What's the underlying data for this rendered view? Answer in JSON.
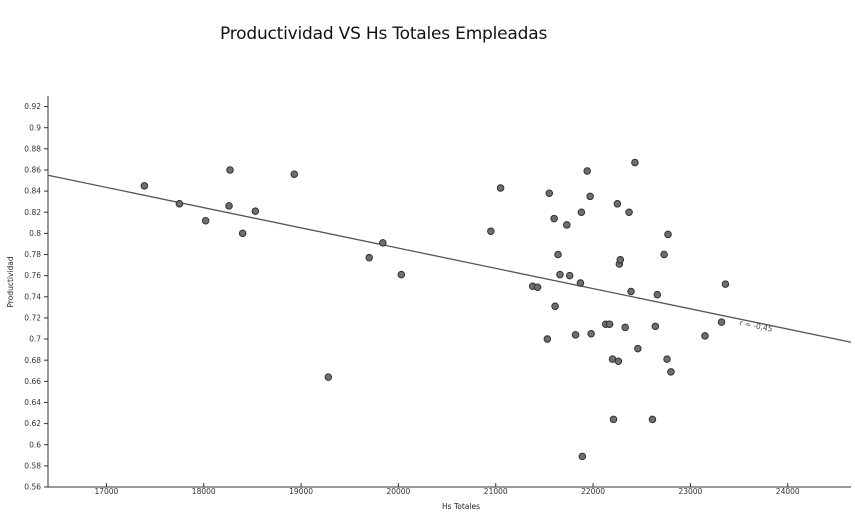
{
  "chart_data": {
    "type": "scatter",
    "title": "Productividad VS Hs Totales Empleadas",
    "xlabel": "Hs Totales",
    "ylabel": "Productividad",
    "xlim": [
      16400,
      24650
    ],
    "ylim": [
      0.56,
      0.93
    ],
    "x_ticks": [
      17000,
      18000,
      19000,
      20000,
      21000,
      22000,
      23000,
      24000
    ],
    "y_ticks": [
      0.56,
      0.58,
      0.6,
      0.62,
      0.64,
      0.66,
      0.68,
      0.7,
      0.72,
      0.74,
      0.76,
      0.78,
      0.8,
      0.82,
      0.84,
      0.86,
      0.88,
      0.9,
      0.92
    ],
    "grid": false,
    "trendline": {
      "x": [
        16400,
        24650
      ],
      "y": [
        0.855,
        0.697
      ],
      "label": "r = -0,45"
    },
    "point_color": "#6e6e6e",
    "line_color": "#555555",
    "points": [
      [
        17390,
        0.845
      ],
      [
        17750,
        0.828
      ],
      [
        18020,
        0.812
      ],
      [
        18260,
        0.826
      ],
      [
        18270,
        0.86
      ],
      [
        18400,
        0.8
      ],
      [
        18530,
        0.821
      ],
      [
        18930,
        0.856
      ],
      [
        19280,
        0.664
      ],
      [
        19700,
        0.777
      ],
      [
        19840,
        0.791
      ],
      [
        20030,
        0.761
      ],
      [
        20950,
        0.802
      ],
      [
        21050,
        0.843
      ],
      [
        21380,
        0.75
      ],
      [
        21430,
        0.749
      ],
      [
        21530,
        0.7
      ],
      [
        21550,
        0.838
      ],
      [
        21600,
        0.814
      ],
      [
        21610,
        0.731
      ],
      [
        21640,
        0.78
      ],
      [
        21660,
        0.761
      ],
      [
        21730,
        0.808
      ],
      [
        21760,
        0.76
      ],
      [
        21820,
        0.704
      ],
      [
        21870,
        0.753
      ],
      [
        21880,
        0.82
      ],
      [
        21890,
        0.589
      ],
      [
        21940,
        0.859
      ],
      [
        21970,
        0.835
      ],
      [
        21980,
        0.705
      ],
      [
        22130,
        0.714
      ],
      [
        22170,
        0.714
      ],
      [
        22200,
        0.681
      ],
      [
        22210,
        0.624
      ],
      [
        22250,
        0.828
      ],
      [
        22260,
        0.679
      ],
      [
        22270,
        0.771
      ],
      [
        22280,
        0.775
      ],
      [
        22330,
        0.711
      ],
      [
        22370,
        0.82
      ],
      [
        22390,
        0.745
      ],
      [
        22430,
        0.867
      ],
      [
        22460,
        0.691
      ],
      [
        22610,
        0.624
      ],
      [
        22640,
        0.712
      ],
      [
        22660,
        0.742
      ],
      [
        22730,
        0.78
      ],
      [
        22760,
        0.681
      ],
      [
        22770,
        0.799
      ],
      [
        22800,
        0.669
      ],
      [
        23150,
        0.703
      ],
      [
        23320,
        0.716
      ],
      [
        23360,
        0.752
      ]
    ]
  }
}
